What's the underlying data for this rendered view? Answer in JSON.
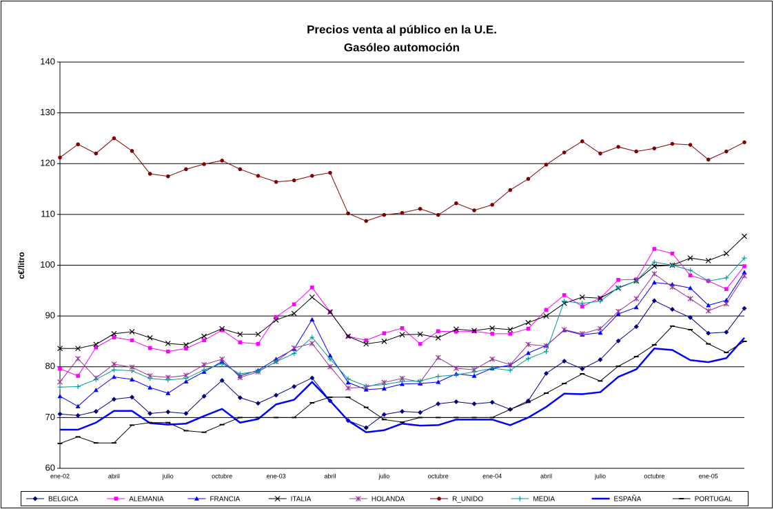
{
  "chart_data": {
    "type": "line",
    "title": [
      "Precios venta al público en la U.E.",
      "Gasóleo automoción"
    ],
    "y_label": "c€/litro",
    "categories": [
      "ene-02",
      null,
      null,
      "abril",
      null,
      null,
      "julio",
      null,
      null,
      "octubre",
      null,
      null,
      "ene-03",
      null,
      null,
      "abril",
      null,
      null,
      "julio",
      null,
      null,
      "octubre",
      null,
      null,
      "ene-04",
      null,
      null,
      "abril",
      null,
      null,
      "julio",
      null,
      null,
      "octubre",
      null,
      null,
      "ene-05",
      null,
      null
    ],
    "ylim": [
      60,
      140
    ],
    "yticks": [
      60,
      70,
      80,
      90,
      100,
      110,
      120,
      130,
      140
    ],
    "grid": true,
    "series": [
      {
        "name": "BELGICA",
        "color": "#000080",
        "marker": "diamond",
        "values": [
          70.7,
          70.4,
          71.2,
          73.6,
          74.0,
          70.8,
          71.1,
          70.8,
          74.2,
          77.3,
          73.9,
          72.8,
          74.4,
          76.1,
          77.8,
          73.3,
          69.4,
          68.0,
          70.6,
          71.2,
          71.0,
          72.7,
          73.1,
          72.7,
          73.0,
          71.6,
          73.3,
          78.7,
          81.1,
          79.6,
          81.4,
          85.1,
          87.9,
          93.0,
          91.3,
          89.7,
          86.6,
          86.8,
          91.5
        ]
      },
      {
        "name": "ALEMANIA",
        "color": "#ff00ff",
        "marker": "square",
        "values": [
          79.6,
          78.2,
          83.8,
          85.8,
          85.2,
          83.7,
          83.0,
          83.6,
          85.2,
          87.2,
          84.8,
          84.5,
          89.8,
          92.3,
          95.6,
          90.8,
          86.0,
          85.2,
          86.6,
          87.6,
          84.5,
          87.0,
          86.9,
          87.0,
          86.5,
          86.5,
          87.5,
          91.2,
          94.1,
          91.9,
          93.5,
          97.1,
          97.2,
          103.2,
          102.3,
          98.0,
          96.9,
          95.3,
          99.8
        ]
      },
      {
        "name": "FRANCIA",
        "color": "#0000ff",
        "marker": "triangle",
        "values": [
          74.2,
          72.2,
          75.4,
          78.0,
          77.5,
          75.9,
          74.8,
          77.1,
          79.0,
          81.0,
          78.2,
          79.3,
          81.5,
          83.5,
          89.3,
          82.2,
          76.9,
          75.5,
          75.7,
          76.6,
          76.7,
          77.0,
          78.6,
          78.2,
          79.7,
          80.3,
          82.7,
          84.2,
          87.2,
          86.3,
          86.7,
          90.4,
          91.7,
          96.6,
          96.2,
          95.5,
          92.1,
          93.1,
          98.6
        ]
      },
      {
        "name": "ITALIA",
        "color": "#000000",
        "marker": "x",
        "values": [
          83.6,
          83.6,
          84.4,
          86.5,
          86.9,
          85.7,
          84.6,
          84.3,
          86.0,
          87.5,
          86.4,
          86.4,
          89.2,
          90.5,
          93.7,
          90.8,
          86.0,
          84.5,
          85.0,
          86.3,
          86.4,
          85.7,
          87.4,
          87.1,
          87.6,
          87.3,
          88.7,
          90.0,
          92.5,
          93.7,
          93.5,
          95.5,
          96.9,
          99.8,
          100.0,
          101.4,
          100.9,
          102.3,
          105.7
        ]
      },
      {
        "name": "HOLANDA",
        "color": "#993399",
        "marker": "star",
        "values": [
          77.0,
          81.6,
          77.8,
          80.5,
          79.9,
          78.2,
          77.9,
          78.3,
          80.4,
          81.5,
          77.9,
          79.0,
          81.0,
          83.7,
          84.6,
          80.0,
          75.8,
          76.0,
          76.9,
          77.7,
          77.0,
          81.8,
          79.7,
          79.4,
          81.5,
          80.4,
          84.4,
          84.1,
          87.3,
          86.5,
          87.5,
          90.9,
          93.4,
          98.3,
          95.7,
          93.4,
          91.0,
          92.4,
          97.9
        ]
      },
      {
        "name": "R_UNIDO",
        "color": "#800000",
        "marker": "circle",
        "values": [
          121.2,
          123.8,
          122.0,
          125.0,
          122.5,
          118.0,
          117.5,
          118.9,
          119.9,
          120.6,
          118.9,
          117.6,
          116.4,
          116.7,
          117.6,
          118.2,
          110.2,
          108.7,
          109.9,
          110.3,
          111.1,
          109.9,
          112.2,
          110.8,
          111.9,
          114.8,
          117.0,
          119.8,
          122.2,
          124.4,
          122.0,
          123.3,
          122.4,
          123.0,
          123.9,
          123.7,
          120.8,
          122.4,
          124.2
        ]
      },
      {
        "name": "MEDIA",
        "color": "#009999",
        "marker": "plus",
        "values": [
          76.0,
          76.1,
          77.5,
          79.4,
          79.2,
          77.7,
          77.4,
          77.7,
          79.4,
          80.6,
          78.6,
          79.1,
          81.0,
          82.6,
          85.8,
          81.5,
          77.6,
          76.2,
          76.5,
          77.1,
          77.2,
          78.1,
          78.4,
          79.0,
          79.7,
          79.3,
          81.6,
          83.0,
          92.9,
          92.5,
          92.9,
          95.6,
          96.9,
          100.6,
          100.0,
          99.0,
          96.9,
          97.5,
          101.4
        ]
      },
      {
        "name": "ESPAÑA",
        "color": "#0000ff",
        "marker": "none",
        "width": 2.5,
        "values": [
          67.6,
          67.6,
          69.0,
          71.3,
          71.3,
          68.9,
          68.6,
          68.8,
          70.3,
          71.7,
          69.0,
          69.7,
          72.6,
          73.5,
          77.0,
          73.3,
          69.4,
          67.1,
          67.5,
          68.8,
          68.4,
          68.5,
          69.6,
          69.6,
          69.6,
          68.5,
          70.0,
          72.1,
          74.7,
          74.6,
          75.0,
          78.0,
          79.5,
          83.6,
          83.3,
          81.3,
          80.9,
          81.7,
          85.7
        ]
      },
      {
        "name": "PORTUGAL",
        "color": "#000000",
        "marker": "dash",
        "values": [
          64.9,
          66.2,
          65.0,
          65.0,
          68.5,
          69.0,
          69.0,
          67.4,
          67.1,
          68.6,
          70.0,
          70.0,
          70.0,
          70.0,
          72.9,
          74.0,
          74.0,
          72.0,
          69.6,
          69.1,
          70.0,
          70.0,
          70.0,
          70.0,
          70.0,
          71.6,
          73.0,
          74.8,
          76.7,
          78.6,
          77.2,
          80.1,
          82.0,
          84.3,
          88.0,
          87.3,
          84.5,
          82.8,
          85.0
        ]
      }
    ]
  }
}
